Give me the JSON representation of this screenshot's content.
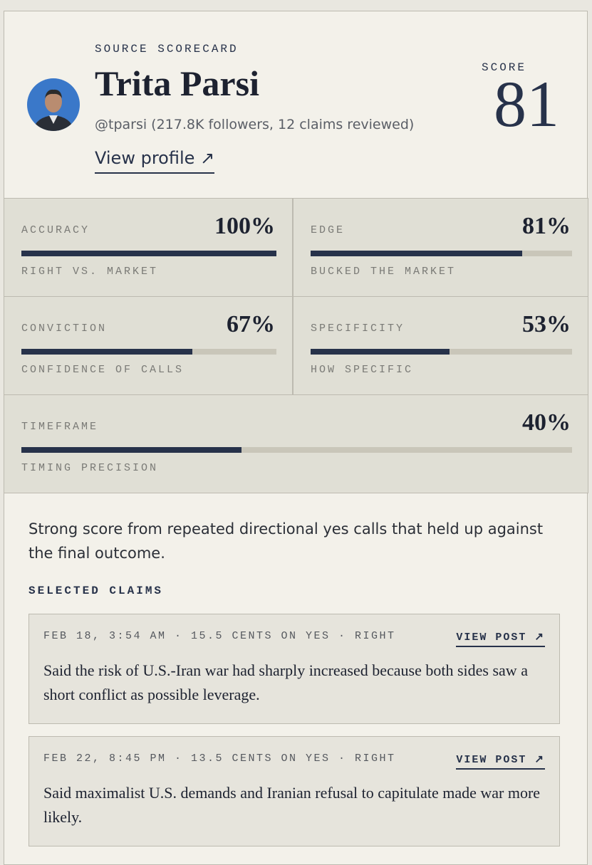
{
  "header": {
    "eyebrow": "SOURCE SCORECARD",
    "name": "Trita Parsi",
    "handle": "@tparsi (217.8K followers, 12 claims reviewed)",
    "profile_link": "View profile ↗",
    "score_label": "SCORE",
    "score": 81
  },
  "metrics": [
    {
      "label": "ACCURACY",
      "value": 100,
      "value_label": "100%",
      "sublabel": "RIGHT VS. MARKET"
    },
    {
      "label": "EDGE",
      "value": 81,
      "value_label": "81%",
      "sublabel": "BUCKED THE MARKET"
    },
    {
      "label": "CONVICTION",
      "value": 67,
      "value_label": "67%",
      "sublabel": "CONFIDENCE OF CALLS"
    },
    {
      "label": "SPECIFICITY",
      "value": 53,
      "value_label": "53%",
      "sublabel": "HOW SPECIFIC"
    },
    {
      "label": "TIMEFRAME",
      "value": 40,
      "value_label": "40%",
      "sublabel": "TIMING PRECISION"
    }
  ],
  "summary": "Strong score from repeated directional yes calls that held up against the final outcome.",
  "claims_title": "SELECTED CLAIMS",
  "claims": [
    {
      "meta": "FEB 18, 3:54 AM · 15.5 CENTS ON YES · RIGHT",
      "link": "VIEW POST ↗",
      "text": "Said the risk of U.S.-Iran war had sharply increased because both sides saw a short conflict as possible leverage."
    },
    {
      "meta": "FEB 22, 8:45 PM · 13.5 CENTS ON YES · RIGHT",
      "link": "VIEW POST ↗",
      "text": "Said maximalist U.S. demands and Iranian refusal to capitulate made war more likely."
    }
  ]
}
